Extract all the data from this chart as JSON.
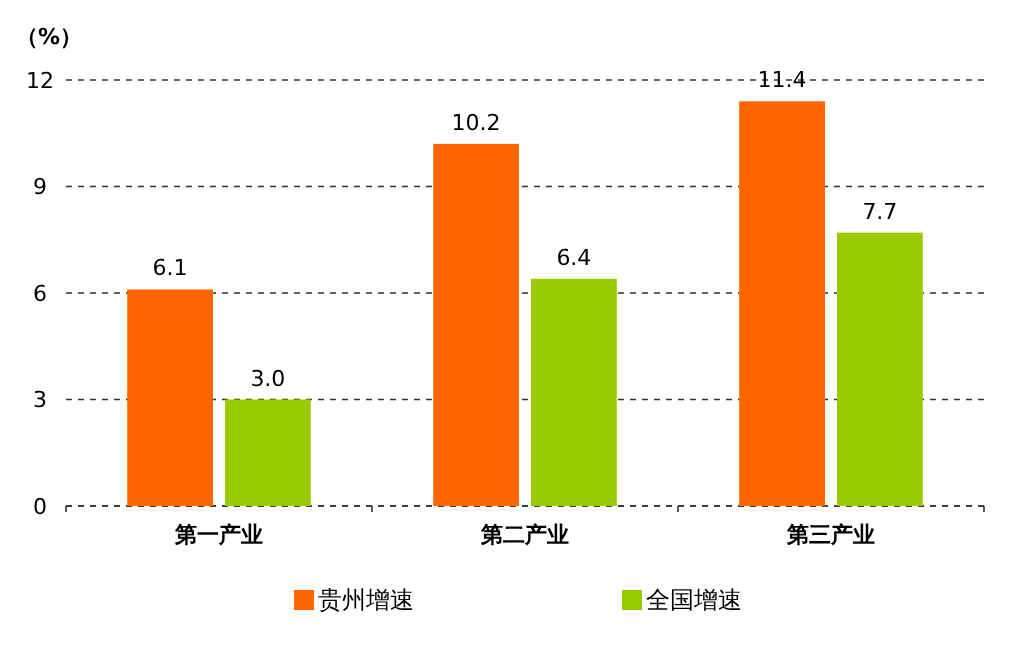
{
  "chart_data": {
    "type": "bar",
    "ylabel": "（%）",
    "categories": [
      "第一产业",
      "第二产业",
      "第三产业"
    ],
    "series": [
      {
        "name": "贵州增速",
        "color": "#ff6600",
        "values": [
          6.1,
          10.2,
          11.4
        ],
        "value_labels": [
          "6.1",
          "10.2",
          "11.4"
        ]
      },
      {
        "name": "全国增速",
        "color": "#99cc00",
        "values": [
          3.0,
          6.4,
          7.7
        ],
        "value_labels": [
          "3.0",
          "6.4",
          "7.7"
        ]
      }
    ],
    "ylim": [
      0,
      12
    ],
    "yticks": [
      0,
      3,
      6,
      9,
      12
    ],
    "grid": "y",
    "legend": "bottom"
  }
}
